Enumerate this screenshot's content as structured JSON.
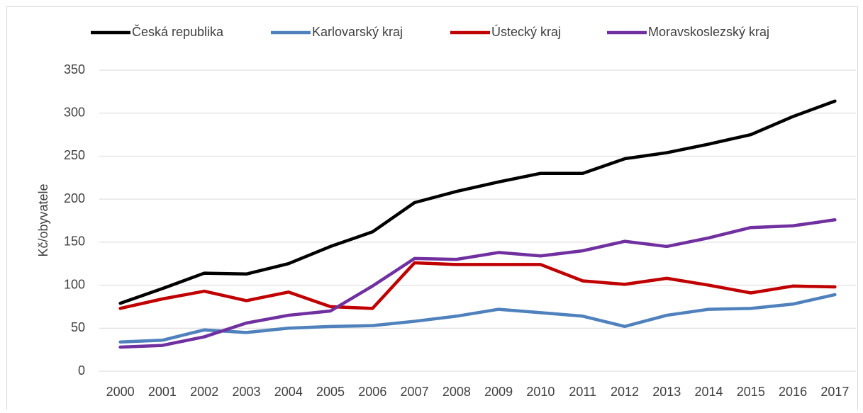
{
  "chart_data": {
    "type": "line",
    "ylabel": "Kč/obyvatele",
    "categories": [
      "2000",
      "2001",
      "2002",
      "2003",
      "2004",
      "2005",
      "2006",
      "2007",
      "2008",
      "2009",
      "2010",
      "2011",
      "2012",
      "2013",
      "2014",
      "2015",
      "2016",
      "2017"
    ],
    "series": [
      {
        "name": "Česká republika",
        "color": "#000000",
        "values": [
          79,
          96,
          114,
          113,
          125,
          145,
          162,
          196,
          209,
          220,
          230,
          230,
          247,
          254,
          264,
          275,
          296,
          314
        ]
      },
      {
        "name": "Karlovarský kraj",
        "color": "#4f81bd",
        "values": [
          34,
          36,
          48,
          45,
          50,
          52,
          53,
          58,
          64,
          72,
          68,
          64,
          52,
          65,
          72,
          73,
          78,
          89
        ]
      },
      {
        "name": "Ústecký kraj",
        "color": "#c00000",
        "values": [
          73,
          84,
          93,
          82,
          92,
          75,
          73,
          126,
          124,
          124,
          124,
          105,
          101,
          108,
          100,
          91,
          99,
          98
        ]
      },
      {
        "name": "Moravskoslezský kraj",
        "color": "#7030a0",
        "values": [
          28,
          30,
          40,
          56,
          65,
          70,
          99,
          131,
          130,
          138,
          134,
          140,
          151,
          145,
          155,
          167,
          169,
          176
        ]
      }
    ],
    "ylim": [
      0,
      350
    ],
    "yticks": [
      0,
      50,
      100,
      150,
      200,
      250,
      300,
      350
    ],
    "grid": true,
    "legend": "top"
  }
}
